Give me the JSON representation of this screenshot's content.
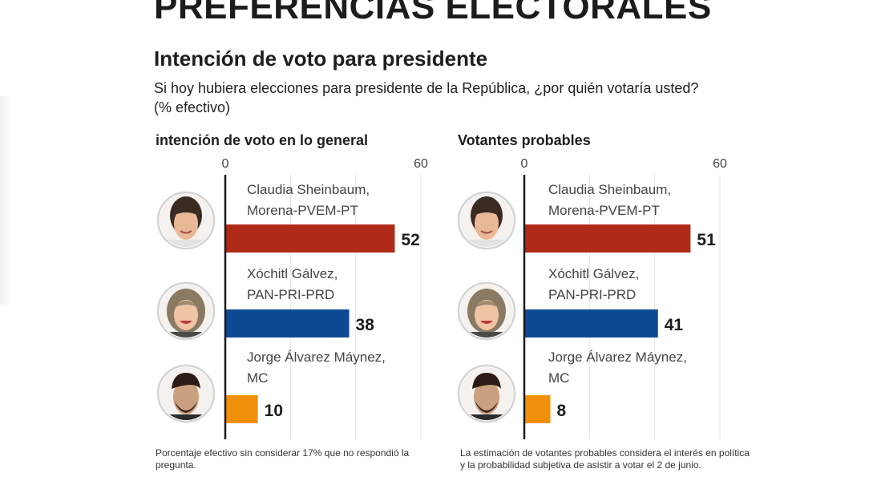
{
  "header": {
    "title": "PREFERENCIAS ELECTORALES",
    "subtitle": "Intención de voto para presidente",
    "question": "Si hoy hubiera elecciones para presidente de la República, ¿por quién votaría usted? (% efectivo)"
  },
  "colors": {
    "Morena-PVEM-PT": "#b02a18",
    "PAN-PRI-PRD": "#0c4a94",
    "MC": "#f0900a"
  },
  "chart_data": [
    {
      "type": "bar",
      "orientation": "horizontal",
      "title": "intención de voto en lo general",
      "categories": [
        "Claudia Sheinbaum, Morena-PVEM-PT",
        "Xóchitl Gálvez, PAN-PRI-PRD",
        "Jorge Álvarez Máynez, MC"
      ],
      "candidates": [
        {
          "name": "Claudia Sheinbaum,",
          "party": "Morena-PVEM-PT",
          "avatar": "sheinbaum-photo",
          "value": 52,
          "label": "52"
        },
        {
          "name": "Xóchitl Gálvez,",
          "party": "PAN-PRI-PRD",
          "avatar": "galvez-photo",
          "value": 38,
          "label": "38"
        },
        {
          "name": "Jorge Álvarez Máynez,",
          "party": "MC",
          "avatar": "alvarez-maynez-photo",
          "value": 10,
          "label": "10"
        }
      ],
      "values": [
        52,
        38,
        10
      ],
      "xlim": [
        0,
        60
      ],
      "tick_labels": [
        "0",
        "60"
      ],
      "gridlines": [
        20,
        40,
        60
      ],
      "footnote": "Porcentaje efectivo sin considerar 17% que no respondió la pregunta."
    },
    {
      "type": "bar",
      "orientation": "horizontal",
      "title": "Votantes probables",
      "categories": [
        "Claudia Sheinbaum, Morena-PVEM-PT",
        "Xóchitl Gálvez, PAN-PRI-PRD",
        "Jorge Álvarez Máynez, MC"
      ],
      "candidates": [
        {
          "name": "Claudia Sheinbaum,",
          "party": "Morena-PVEM-PT",
          "avatar": "sheinbaum-photo",
          "value": 51,
          "label": "51"
        },
        {
          "name": "Xóchitl Gálvez,",
          "party": "PAN-PRI-PRD",
          "avatar": "galvez-photo",
          "value": 41,
          "label": "41"
        },
        {
          "name": "Jorge Álvarez Máynez,",
          "party": "MC",
          "avatar": "alvarez-maynez-photo",
          "value": 8,
          "label": "8"
        }
      ],
      "values": [
        51,
        41,
        8
      ],
      "xlim": [
        0,
        60
      ],
      "tick_labels": [
        "0",
        "60"
      ],
      "gridlines": [
        20,
        40,
        60
      ],
      "footnote": "La estimación de votantes probables considera el interés en política y la probabilidad subjetiva de asistir a votar el 2 de junio."
    }
  ]
}
